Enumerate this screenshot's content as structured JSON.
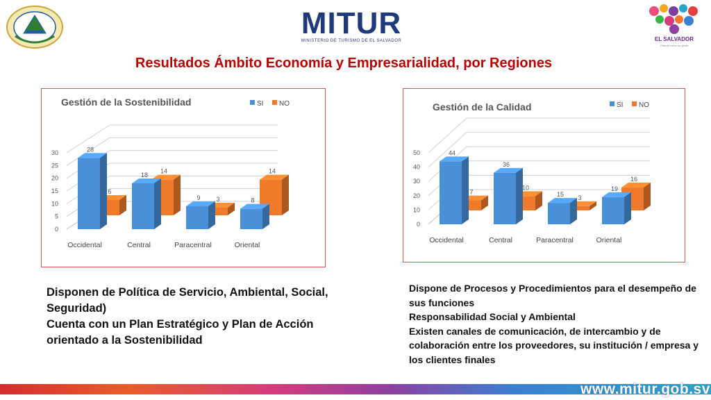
{
  "header": {
    "logo_main": "MITUR",
    "logo_sub": "MINISTERIO DE TURISMO DE EL SALVADOR",
    "brand_name": "EL SALVADOR",
    "brand_tag": "Grande como su gente",
    "title": "Resultados Ámbito Economía y Empresarialidad, por Regiones"
  },
  "chart_data": [
    {
      "type": "bar",
      "title": "Gestión de la Sostenibilidad",
      "categories": [
        "Occidental",
        "Central",
        "Paracentral",
        "Oriental"
      ],
      "series": [
        {
          "name": "SI",
          "values": [
            28,
            18,
            9,
            8
          ]
        },
        {
          "name": "NO",
          "values": [
            6,
            14,
            3,
            14
          ]
        }
      ],
      "yticks": [
        "0",
        "5",
        "10",
        "15",
        "20",
        "25",
        "30"
      ],
      "ylim": [
        0,
        30
      ],
      "legend": "top-right",
      "colors": {
        "SI": "#4a90d9",
        "NO": "#f07a2a"
      }
    },
    {
      "type": "bar",
      "title": "Gestión de la Calidad",
      "categories": [
        "Occidental",
        "Central",
        "Paracentral",
        "Oriental"
      ],
      "series": [
        {
          "name": "SI",
          "values": [
            44,
            36,
            15,
            19
          ]
        },
        {
          "name": "NO",
          "values": [
            7,
            10,
            3,
            16
          ]
        }
      ],
      "yticks": [
        "0",
        "10",
        "20",
        "30",
        "40",
        "50"
      ],
      "ylim": [
        0,
        50
      ],
      "legend": "top-right",
      "colors": {
        "SI": "#4a90d9",
        "NO": "#f07a2a"
      }
    }
  ],
  "left_text": [
    "Disponen de Política de Servicio, Ambiental, Social, Seguridad)",
    "Cuenta con un Plan Estratégico y Plan de Acción orientado a la Sostenibilidad"
  ],
  "right_text": [
    "Dispone de Procesos y Procedimientos para el desempeño de sus funciones",
    "Responsabilidad Social y Ambiental",
    "Existen canales de comunicación, de intercambio y de colaboración entre los proveedores, su institución / empresa y los clientes finales"
  ],
  "footer": {
    "url": "www.mitur.gob.sv"
  }
}
